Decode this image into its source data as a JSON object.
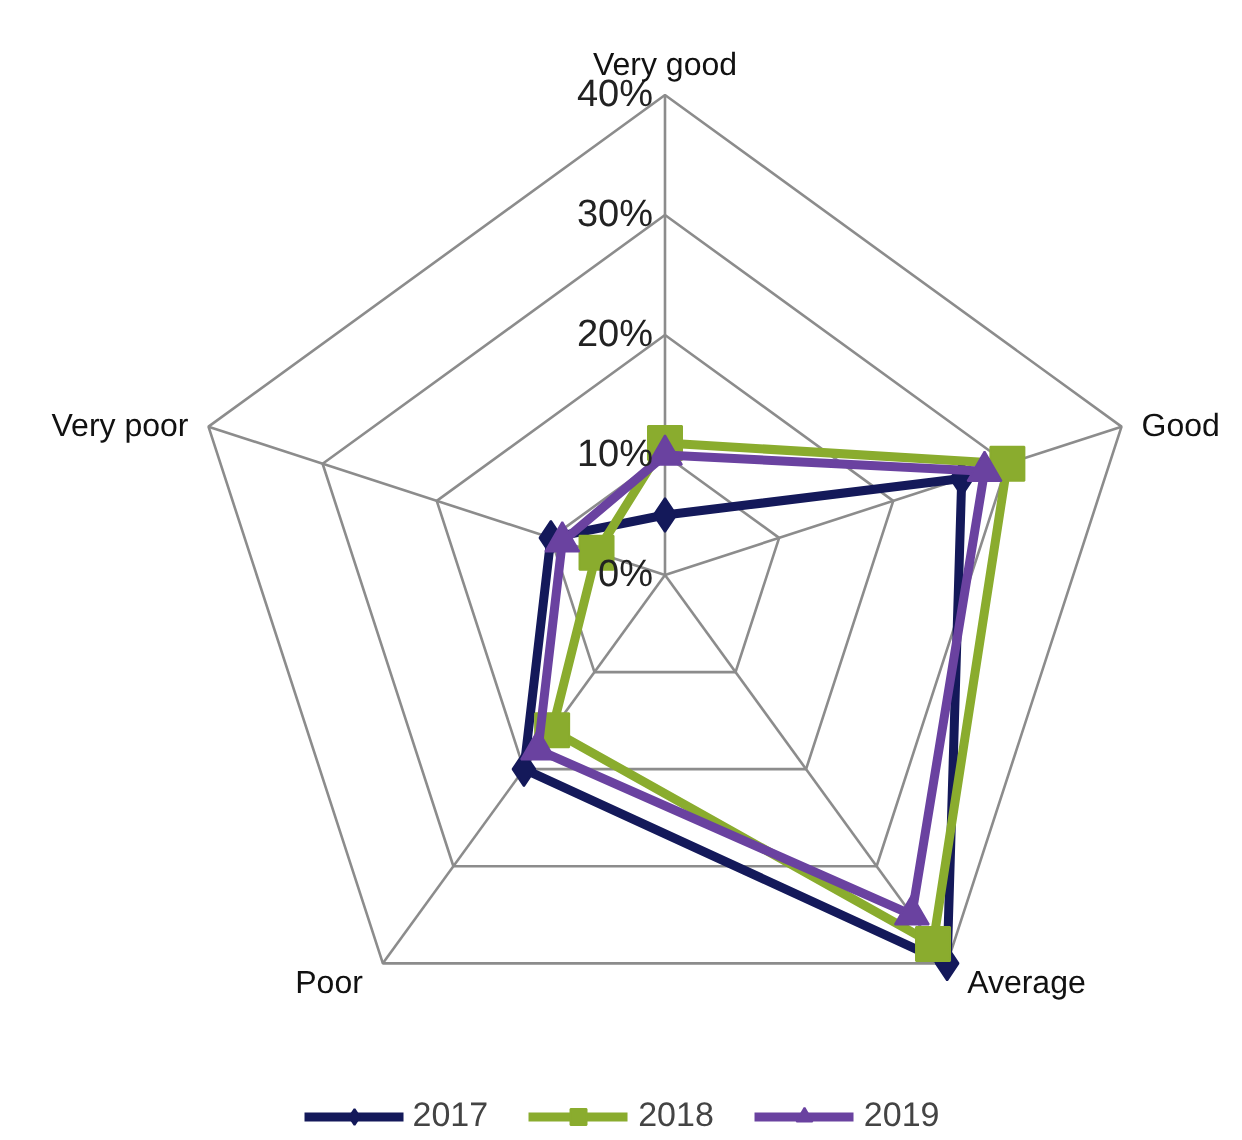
{
  "chart_data": {
    "type": "radar",
    "categories": [
      "Very good",
      "Good",
      "Average",
      "Poor",
      "Very poor"
    ],
    "ylim": [
      0,
      40
    ],
    "yticks": [
      {
        "value": 0,
        "label": "0%"
      },
      {
        "value": 10,
        "label": "10%"
      },
      {
        "value": 20,
        "label": "20%"
      },
      {
        "value": 30,
        "label": "30%"
      },
      {
        "value": 40,
        "label": "40%"
      }
    ],
    "series": [
      {
        "name": "2017",
        "color": "#14195a",
        "marker": "diamond",
        "values": [
          5,
          26,
          40,
          20,
          10
        ]
      },
      {
        "name": "2018",
        "color": "#8aac2e",
        "marker": "square",
        "values": [
          11,
          30,
          38,
          16,
          6
        ]
      },
      {
        "name": "2019",
        "color": "#6a42a0",
        "marker": "triangle",
        "values": [
          10,
          28,
          35,
          18,
          9
        ]
      }
    ],
    "grid": true,
    "legend": "bottom"
  }
}
